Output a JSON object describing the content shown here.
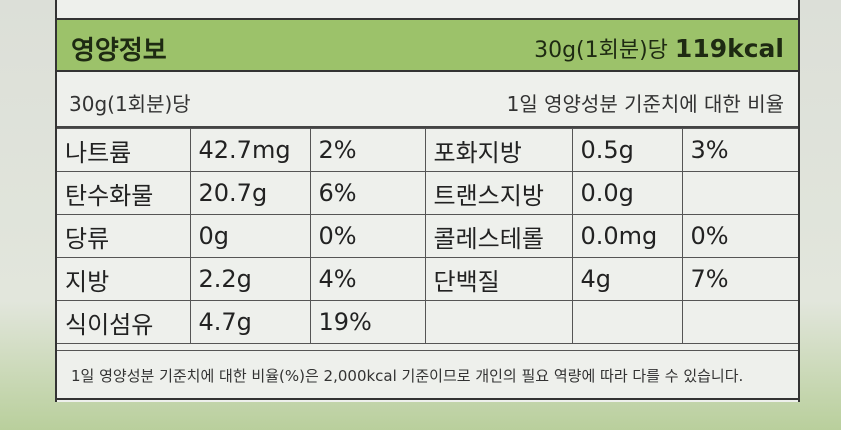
{
  "header": {
    "title": "영양정보",
    "serving": "30g(1회분)당",
    "kcal": "119kcal"
  },
  "subheader": {
    "left": "30g(1회분)당",
    "right": "1일 영양성분 기준치에 대한 비율"
  },
  "table": {
    "rows": [
      [
        "나트륨",
        "42.7mg",
        "2%",
        "포화지방",
        "0.5g",
        "3%"
      ],
      [
        "탄수화물",
        "20.7g",
        "6%",
        "트랜스지방",
        "0.0g",
        null
      ],
      [
        "당류",
        "0g",
        "0%",
        "콜레스테롤",
        "0.0mg",
        "0%"
      ],
      [
        "지방",
        "2.2g",
        "4%",
        "단백질",
        "4g",
        "7%"
      ],
      [
        "식이섬유",
        "4.7g",
        "19%",
        null,
        null,
        null
      ]
    ]
  },
  "footnote": "1일 영양성분 기준치에 대한 비율(%)은 2,000kcal 기준이므로 개인의 필요 역량에 따라 다를 수 있습니다."
}
